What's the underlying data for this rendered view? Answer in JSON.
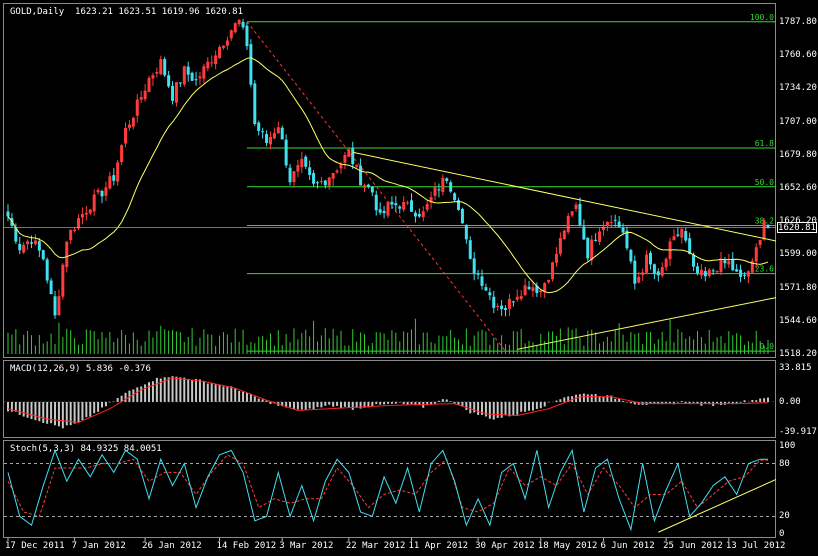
{
  "chart_data": {
    "type": "candlestick",
    "symbol_title": "GOLD,Daily",
    "ohlc_header": "1623.21 1623.51 1619.96 1620.81",
    "last_price": "1620.81",
    "price_axis": {
      "ylim": [
        1518.2,
        1787.8
      ],
      "ticks": [
        "1787.80",
        "1760.60",
        "1734.20",
        "1707.00",
        "1679.80",
        "1652.60",
        "1626.20",
        "1599.00",
        "1571.80",
        "1544.60",
        "1518.20"
      ]
    },
    "x_labels": [
      "17 Dec 2011",
      "7 Jan 2012",
      "26 Jan 2012",
      "14 Feb 2012",
      "3 Mar 2012",
      "22 Mar 2012",
      "11 Apr 2012",
      "30 Apr 2012",
      "18 May 2012",
      "6 Jun 2012",
      "25 Jun 2012",
      "13 Jul 2012"
    ],
    "close_anchors": [
      [
        0,
        1630
      ],
      [
        3,
        1605
      ],
      [
        6,
        1612
      ],
      [
        9,
        1596
      ],
      [
        12,
        1548
      ],
      [
        15,
        1612
      ],
      [
        18,
        1628
      ],
      [
        21,
        1640
      ],
      [
        24,
        1650
      ],
      [
        27,
        1662
      ],
      [
        30,
        1700
      ],
      [
        33,
        1720
      ],
      [
        36,
        1742
      ],
      [
        39,
        1755
      ],
      [
        42,
        1728
      ],
      [
        45,
        1748
      ],
      [
        48,
        1740
      ],
      [
        51,
        1754
      ],
      [
        54,
        1768
      ],
      [
        57,
        1782
      ],
      [
        59,
        1788
      ],
      [
        61,
        1770
      ],
      [
        63,
        1705
      ],
      [
        66,
        1690
      ],
      [
        69,
        1705
      ],
      [
        72,
        1660
      ],
      [
        75,
        1672
      ],
      [
        78,
        1654
      ],
      [
        81,
        1660
      ],
      [
        84,
        1670
      ],
      [
        87,
        1682
      ],
      [
        90,
        1660
      ],
      [
        93,
        1650
      ],
      [
        95,
        1628
      ],
      [
        97,
        1638
      ],
      [
        100,
        1640
      ],
      [
        103,
        1636
      ],
      [
        106,
        1632
      ],
      [
        109,
        1650
      ],
      [
        112,
        1662
      ],
      [
        115,
        1640
      ],
      [
        118,
        1592
      ],
      [
        121,
        1578
      ],
      [
        124,
        1560
      ],
      [
        127,
        1556
      ],
      [
        130,
        1568
      ],
      [
        133,
        1575
      ],
      [
        136,
        1570
      ],
      [
        139,
        1590
      ],
      [
        142,
        1620
      ],
      [
        145,
        1638
      ],
      [
        148,
        1600
      ],
      [
        151,
        1622
      ],
      [
        154,
        1630
      ],
      [
        157,
        1618
      ],
      [
        160,
        1575
      ],
      [
        163,
        1595
      ],
      [
        166,
        1578
      ],
      [
        169,
        1605
      ],
      [
        172,
        1620
      ],
      [
        175,
        1585
      ],
      [
        178,
        1580
      ],
      [
        181,
        1590
      ],
      [
        184,
        1592
      ],
      [
        187,
        1578
      ],
      [
        190,
        1590
      ],
      [
        193,
        1628
      ],
      [
        194,
        1621
      ]
    ],
    "fibonacci_levels": [
      {
        "label": "100.0",
        "price": 1788.0
      },
      {
        "label": "61.8",
        "price": 1685.5
      },
      {
        "label": "50.0",
        "price": 1654.0
      },
      {
        "label": "38.2",
        "price": 1622.5
      },
      {
        "label": "23.6",
        "price": 1583.5
      },
      {
        "label": "0.0",
        "price": 1520.5
      }
    ],
    "macd": {
      "title": "MACD(12,26,9) 5.836 -0.376",
      "ylim": [
        -39.917,
        33.815
      ],
      "ticks": [
        "33.815",
        "0.00",
        "-39.917"
      ],
      "hist_anchors": [
        [
          0,
          -10
        ],
        [
          8,
          -22
        ],
        [
          14,
          -30
        ],
        [
          18,
          -25
        ],
        [
          24,
          -8
        ],
        [
          30,
          10
        ],
        [
          36,
          24
        ],
        [
          40,
          30
        ],
        [
          46,
          28
        ],
        [
          52,
          22
        ],
        [
          58,
          16
        ],
        [
          64,
          4
        ],
        [
          70,
          -6
        ],
        [
          76,
          -10
        ],
        [
          82,
          -4
        ],
        [
          88,
          -8
        ],
        [
          94,
          -4
        ],
        [
          100,
          -2
        ],
        [
          106,
          -6
        ],
        [
          112,
          4
        ],
        [
          118,
          -12
        ],
        [
          124,
          -20
        ],
        [
          130,
          -14
        ],
        [
          136,
          -6
        ],
        [
          142,
          6
        ],
        [
          148,
          10
        ],
        [
          154,
          6
        ],
        [
          160,
          -2
        ],
        [
          166,
          -4
        ],
        [
          172,
          0
        ],
        [
          178,
          -4
        ],
        [
          184,
          -2
        ],
        [
          190,
          2
        ],
        [
          194,
          6
        ]
      ],
      "signal_anchors": [
        [
          0,
          -8
        ],
        [
          10,
          -20
        ],
        [
          18,
          -24
        ],
        [
          26,
          -8
        ],
        [
          34,
          14
        ],
        [
          42,
          28
        ],
        [
          50,
          24
        ],
        [
          58,
          16
        ],
        [
          66,
          2
        ],
        [
          74,
          -10
        ],
        [
          82,
          -8
        ],
        [
          90,
          -6
        ],
        [
          98,
          -4
        ],
        [
          106,
          -3
        ],
        [
          114,
          -2
        ],
        [
          122,
          -14
        ],
        [
          130,
          -16
        ],
        [
          138,
          -8
        ],
        [
          146,
          6
        ],
        [
          154,
          6
        ],
        [
          162,
          -2
        ],
        [
          170,
          -2
        ],
        [
          178,
          -2
        ],
        [
          186,
          -2
        ],
        [
          194,
          -1
        ]
      ]
    },
    "stochastic": {
      "title": "Stoch(5,3,3) 84.9325 84.0051",
      "ylim": [
        0,
        100
      ],
      "ticks": [
        "100",
        "80",
        "20",
        "0"
      ],
      "k_anchors": [
        [
          0,
          70
        ],
        [
          3,
          20
        ],
        [
          6,
          10
        ],
        [
          9,
          55
        ],
        [
          12,
          95
        ],
        [
          15,
          60
        ],
        [
          18,
          85
        ],
        [
          21,
          65
        ],
        [
          24,
          90
        ],
        [
          27,
          70
        ],
        [
          30,
          95
        ],
        [
          33,
          85
        ],
        [
          36,
          40
        ],
        [
          39,
          85
        ],
        [
          42,
          55
        ],
        [
          45,
          80
        ],
        [
          48,
          30
        ],
        [
          51,
          65
        ],
        [
          54,
          90
        ],
        [
          57,
          95
        ],
        [
          60,
          70
        ],
        [
          63,
          15
        ],
        [
          66,
          20
        ],
        [
          69,
          70
        ],
        [
          72,
          20
        ],
        [
          75,
          55
        ],
        [
          78,
          15
        ],
        [
          81,
          60
        ],
        [
          84,
          85
        ],
        [
          87,
          70
        ],
        [
          90,
          25
        ],
        [
          93,
          20
        ],
        [
          96,
          65
        ],
        [
          99,
          35
        ],
        [
          102,
          75
        ],
        [
          105,
          25
        ],
        [
          108,
          80
        ],
        [
          111,
          95
        ],
        [
          114,
          60
        ],
        [
          117,
          10
        ],
        [
          120,
          40
        ],
        [
          123,
          10
        ],
        [
          126,
          70
        ],
        [
          129,
          80
        ],
        [
          132,
          40
        ],
        [
          135,
          95
        ],
        [
          138,
          30
        ],
        [
          141,
          70
        ],
        [
          144,
          95
        ],
        [
          147,
          25
        ],
        [
          150,
          75
        ],
        [
          153,
          85
        ],
        [
          156,
          40
        ],
        [
          159,
          5
        ],
        [
          162,
          80
        ],
        [
          165,
          15
        ],
        [
          168,
          50
        ],
        [
          171,
          80
        ],
        [
          174,
          20
        ],
        [
          177,
          35
        ],
        [
          180,
          55
        ],
        [
          183,
          65
        ],
        [
          186,
          45
        ],
        [
          189,
          80
        ],
        [
          192,
          85
        ],
        [
          194,
          85
        ]
      ],
      "d_anchors": [
        [
          0,
          60
        ],
        [
          4,
          25
        ],
        [
          8,
          20
        ],
        [
          12,
          75
        ],
        [
          16,
          75
        ],
        [
          20,
          75
        ],
        [
          24,
          80
        ],
        [
          28,
          80
        ],
        [
          32,
          85
        ],
        [
          36,
          60
        ],
        [
          40,
          70
        ],
        [
          44,
          70
        ],
        [
          48,
          45
        ],
        [
          52,
          70
        ],
        [
          56,
          90
        ],
        [
          60,
          80
        ],
        [
          64,
          30
        ],
        [
          68,
          40
        ],
        [
          72,
          35
        ],
        [
          76,
          40
        ],
        [
          80,
          40
        ],
        [
          84,
          75
        ],
        [
          88,
          55
        ],
        [
          92,
          30
        ],
        [
          96,
          45
        ],
        [
          100,
          50
        ],
        [
          104,
          45
        ],
        [
          108,
          70
        ],
        [
          112,
          85
        ],
        [
          116,
          30
        ],
        [
          120,
          25
        ],
        [
          124,
          35
        ],
        [
          128,
          75
        ],
        [
          132,
          55
        ],
        [
          136,
          65
        ],
        [
          140,
          55
        ],
        [
          144,
          80
        ],
        [
          148,
          45
        ],
        [
          152,
          75
        ],
        [
          156,
          55
        ],
        [
          160,
          30
        ],
        [
          164,
          45
        ],
        [
          168,
          45
        ],
        [
          172,
          60
        ],
        [
          176,
          30
        ],
        [
          180,
          45
        ],
        [
          184,
          60
        ],
        [
          188,
          65
        ],
        [
          192,
          84
        ],
        [
          194,
          84
        ]
      ]
    },
    "colors": {
      "bull": "#ff3b3b",
      "bear": "#40e0f0",
      "ma": "#ffff66",
      "fib": "#33dd33",
      "trend": "#ffff66",
      "fib_diagonal": "#ff3333",
      "volume": "#33cc33",
      "macd_hist": "#c8c8c8",
      "macd_signal": "#ff2222",
      "stoch_k": "#40e0f0",
      "stoch_d": "#ff3b3b",
      "level_lines": "#e0e0e0"
    }
  }
}
